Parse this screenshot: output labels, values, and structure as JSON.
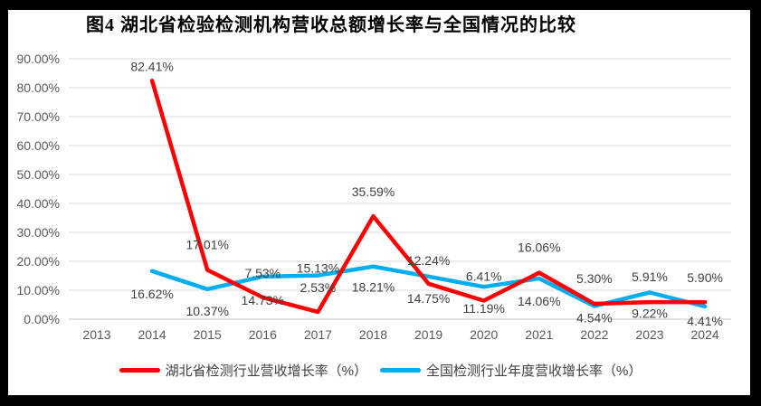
{
  "title": "图4 湖北省检验检测机构营收总额增长率与全国情况的比较",
  "chart_data": {
    "type": "line",
    "title": "图4 湖北省检验检测机构营收总额增长率与全国情况的比较",
    "categories": [
      "2013",
      "2014",
      "2015",
      "2016",
      "2017",
      "2018",
      "2019",
      "2020",
      "2021",
      "2022",
      "2023",
      "2024"
    ],
    "series": [
      {
        "name": "湖北省检测行业营收增长率（%）",
        "color": "#FE0000",
        "values": [
          null,
          82.41,
          17.01,
          7.53,
          2.53,
          35.59,
          12.24,
          6.41,
          16.06,
          5.3,
          5.91,
          5.9
        ],
        "label_side": "above",
        "label_dy": [
          null,
          -16,
          -28,
          -27,
          -27,
          -27,
          -26,
          -27,
          -28,
          -28,
          -28,
          -27
        ]
      },
      {
        "name": "全国检测行业年度营收增长率（%）",
        "color": "#00AEEF",
        "values": [
          null,
          16.62,
          10.37,
          14.73,
          15.13,
          18.21,
          14.75,
          11.19,
          14.06,
          4.54,
          9.22,
          4.41
        ],
        "label_side": "below",
        "label_dy": [
          null,
          25,
          24,
          26,
          -8,
          23,
          24,
          24,
          25,
          13,
          23,
          16
        ]
      }
    ],
    "y_ticks": [
      "0.00%",
      "10.00%",
      "20.00%",
      "30.00%",
      "40.00%",
      "50.00%",
      "60.00%",
      "70.00%",
      "80.00%",
      "90.00%"
    ],
    "ylim": [
      0,
      90
    ],
    "xlabel": "",
    "ylabel": "",
    "grid": true,
    "legend_position": "bottom",
    "label_format": "0.00%"
  },
  "colors": {
    "frame": "#000000",
    "background": "#ffffff",
    "grid": "#D9D9D9",
    "axis": "#C6C6C6",
    "tick_text": "#595959",
    "data_label": "#3F3F3F",
    "legend_text": "#404040"
  }
}
